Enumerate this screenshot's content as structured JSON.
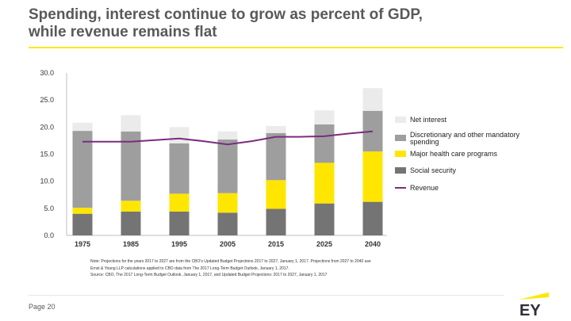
{
  "header": {
    "title_line1": "Spending, interest continue to grow as percent of GDP,",
    "title_line2": "while revenue remains flat"
  },
  "chart_data": {
    "type": "bar",
    "stacked": true,
    "categories": [
      "1975",
      "1985",
      "1995",
      "2005",
      "2015",
      "2025",
      "2040"
    ],
    "ylim": [
      0,
      30
    ],
    "yticks": [
      "0.0",
      "5.0",
      "10.0",
      "15.0",
      "20.0",
      "25.0",
      "30.0"
    ],
    "grid": false,
    "legend_position": "right",
    "series": [
      {
        "name": "Social security",
        "color": "#747474",
        "values": [
          4.0,
          4.4,
          4.4,
          4.2,
          4.9,
          5.9,
          6.2
        ]
      },
      {
        "name": "Major health care programs",
        "color": "#ffe600",
        "values": [
          1.1,
          2.0,
          3.3,
          3.6,
          5.3,
          7.5,
          9.3
        ]
      },
      {
        "name": "Discretionary and other mandatory spending",
        "color": "#9e9e9e",
        "values": [
          14.2,
          12.8,
          9.3,
          9.9,
          8.7,
          7.1,
          7.5
        ]
      },
      {
        "name": "Net interest",
        "color": "#ebebeb",
        "values": [
          1.5,
          3.0,
          3.0,
          1.5,
          1.3,
          2.6,
          4.2
        ]
      }
    ],
    "line": {
      "name": "Revenue",
      "color": "#7b2c80",
      "x": [
        0,
        0.5,
        1,
        1.5,
        2,
        2.5,
        3,
        3.5,
        4,
        4.5,
        5,
        5.5,
        6
      ],
      "values": [
        17.3,
        17.3,
        17.3,
        17.6,
        17.9,
        17.4,
        16.8,
        17.4,
        18.2,
        18.2,
        18.3,
        18.8,
        19.2
      ]
    },
    "legend_order": [
      "Net interest",
      "Discretionary and other mandatory spending",
      "Major health care programs",
      "Social security",
      "Revenue"
    ]
  },
  "notes": [
    "Note: Projections for the years 2017 to 2027 are from the CBO's Updated Budget Projections 2017 to 2027, January 1, 2017. Projections from 2027 to 2040 use",
    "Ernst & Young LLP calculations applied to CBO data from The 2017 Long-Term Budget Outlook, January 1, 2017.",
    "Source: CBO, The 2017 Long-Term Budget Outlook, January 1, 2017, and Updated Budget Projections: 2017 to 2027, January 1, 2017"
  ],
  "footer": {
    "page_label": "Page 20"
  },
  "logo": {
    "text": "EY",
    "accent": "#ffe600"
  }
}
